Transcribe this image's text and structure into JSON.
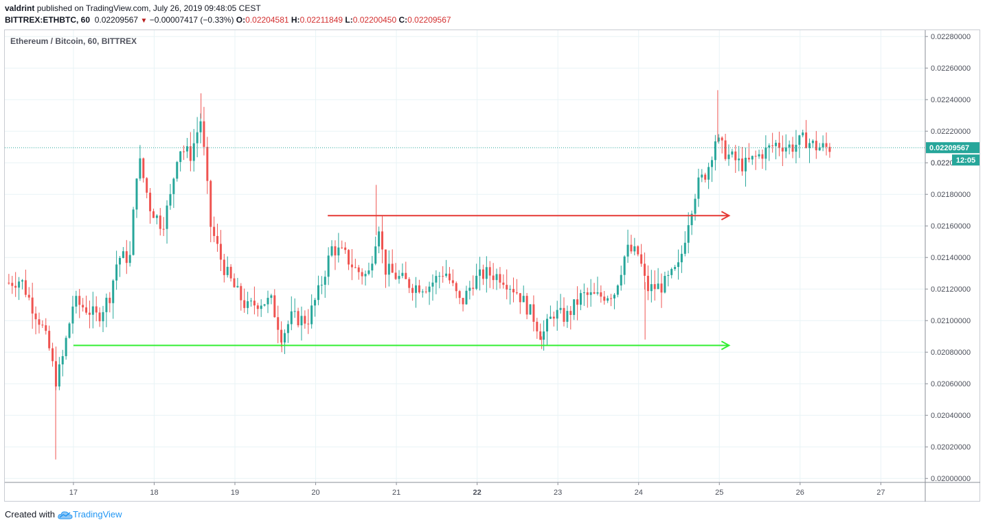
{
  "header": {
    "author": "valdrint",
    "published_text": "published on TradingView.com, July 26, 2019 09:48:05 CEST",
    "symbol": "BITTREX:ETHBTC, 60",
    "last_price": "0.02209567",
    "change": "−0.00007417 (−0.33%)",
    "o_label": "O:",
    "o_value": "0.02204581",
    "h_label": "H:",
    "h_value": "0.02211849",
    "l_label": "L:",
    "l_value": "0.02200450",
    "c_label": "C:",
    "c_value": "0.02209567"
  },
  "chart_title": "Ethereum / Bitcoin, 60, BITTREX",
  "footer": {
    "created_with": "Created with",
    "brand": "TradingView"
  },
  "colors": {
    "up": "#26a69a",
    "down": "#ef5350",
    "grid": "#e8f3f6",
    "resistance": "#e53935",
    "support": "#33ee33",
    "last_price_bg": "#26a69a"
  },
  "chart_data": {
    "type": "candlestick",
    "title": "Ethereum / Bitcoin, 60, BITTREX",
    "x_tick_labels": [
      "17",
      "18",
      "19",
      "20",
      "21",
      "22",
      "23",
      "24",
      "25",
      "26",
      "27"
    ],
    "x_ticks_day": [
      17,
      18,
      19,
      20,
      21,
      22,
      23,
      24,
      25,
      26,
      27
    ],
    "x_range": [
      16.15,
      27.55
    ],
    "y_tick_labels": [
      "0.02280000",
      "0.02260000",
      "0.02240000",
      "0.02220000",
      "0.02200000",
      "0.02180000",
      "0.02160000",
      "0.02140000",
      "0.02120000",
      "0.02100000",
      "0.02080000",
      "0.02060000",
      "0.02040000",
      "0.02020000",
      "0.02000000"
    ],
    "y_ticks": [
      0.0228,
      0.0226,
      0.0224,
      0.0222,
      0.022,
      0.0218,
      0.0216,
      0.0214,
      0.0212,
      0.021,
      0.0208,
      0.0206,
      0.0204,
      0.0202,
      0.02
    ],
    "ylim": [
      0.019975,
      0.02284
    ],
    "last_price_label": "0.02209567",
    "last_price_value": 0.02209567,
    "countdown_label": "12:05",
    "countdown_partial_label": "0.022",
    "series_path_day_price": [
      [
        16.2,
        0.02124
      ],
      [
        16.35,
        0.02126
      ],
      [
        16.5,
        0.02108
      ],
      [
        16.6,
        0.02098
      ],
      [
        16.7,
        0.02082
      ],
      [
        16.78,
        0.02062
      ],
      [
        16.85,
        0.02072
      ],
      [
        17.0,
        0.02112
      ],
      [
        17.15,
        0.02108
      ],
      [
        17.3,
        0.02102
      ],
      [
        17.45,
        0.02116
      ],
      [
        17.55,
        0.0214
      ],
      [
        17.7,
        0.0214
      ],
      [
        17.8,
        0.02205
      ],
      [
        17.95,
        0.02172
      ],
      [
        18.1,
        0.0216
      ],
      [
        18.2,
        0.02178
      ],
      [
        18.3,
        0.0221
      ],
      [
        18.45,
        0.02205
      ],
      [
        18.58,
        0.02228
      ],
      [
        18.7,
        0.0216
      ],
      [
        18.85,
        0.02135
      ],
      [
        19.0,
        0.0212
      ],
      [
        19.15,
        0.02108
      ],
      [
        19.3,
        0.02112
      ],
      [
        19.45,
        0.02112
      ],
      [
        19.58,
        0.0209
      ],
      [
        19.7,
        0.02102
      ],
      [
        19.9,
        0.021
      ],
      [
        20.05,
        0.0212
      ],
      [
        20.2,
        0.02146
      ],
      [
        20.35,
        0.02142
      ],
      [
        20.5,
        0.02132
      ],
      [
        20.65,
        0.02128
      ],
      [
        20.78,
        0.02162
      ],
      [
        20.85,
        0.02133
      ],
      [
        21.0,
        0.02128
      ],
      [
        21.2,
        0.02122
      ],
      [
        21.4,
        0.02122
      ],
      [
        21.6,
        0.02132
      ],
      [
        21.8,
        0.0211
      ],
      [
        21.95,
        0.02125
      ],
      [
        22.1,
        0.0213
      ],
      [
        22.3,
        0.02128
      ],
      [
        22.5,
        0.02118
      ],
      [
        22.7,
        0.02102
      ],
      [
        22.8,
        0.0209
      ],
      [
        22.95,
        0.02105
      ],
      [
        23.1,
        0.02102
      ],
      [
        23.3,
        0.02116
      ],
      [
        23.5,
        0.02115
      ],
      [
        23.7,
        0.02118
      ],
      [
        23.85,
        0.02145
      ],
      [
        24.0,
        0.02142
      ],
      [
        24.1,
        0.0212
      ],
      [
        24.3,
        0.02122
      ],
      [
        24.5,
        0.02134
      ],
      [
        24.62,
        0.02165
      ],
      [
        24.72,
        0.02185
      ],
      [
        24.85,
        0.02195
      ],
      [
        24.95,
        0.02215
      ],
      [
        25.1,
        0.02205
      ],
      [
        25.3,
        0.02198
      ],
      [
        25.5,
        0.02205
      ],
      [
        25.7,
        0.02212
      ],
      [
        25.9,
        0.0221
      ],
      [
        26.05,
        0.02215
      ],
      [
        26.2,
        0.0221
      ],
      [
        26.35,
        0.02209567
      ]
    ],
    "extreme_wicks_day_price": [
      [
        16.78,
        0.02012
      ],
      [
        18.58,
        0.02244
      ],
      [
        20.75,
        0.02186
      ],
      [
        24.08,
        0.02088
      ],
      [
        24.98,
        0.02246
      ],
      [
        19.58,
        0.0208
      ],
      [
        22.8,
        0.02082
      ]
    ],
    "resistance_line": {
      "price": 0.021665,
      "from_day": 20.15,
      "to_day": 25.12
    },
    "support_line": {
      "price": 0.020843,
      "from_day": 17.0,
      "to_day": 25.12
    }
  }
}
